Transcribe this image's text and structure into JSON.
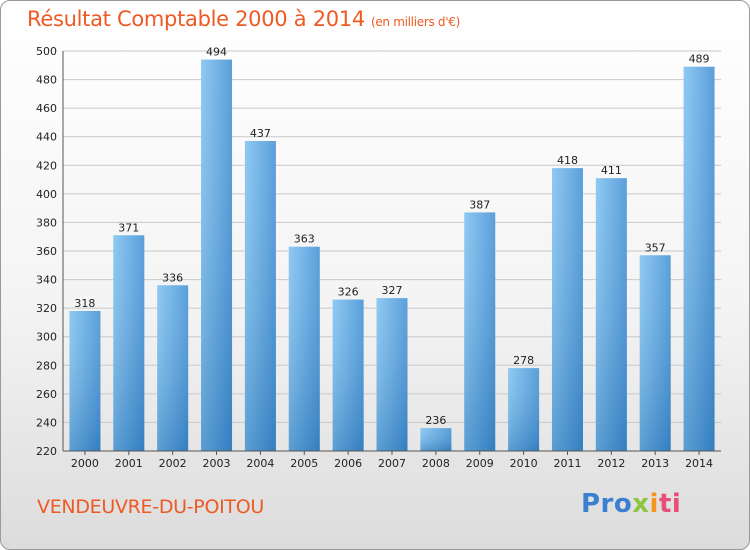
{
  "title": "Résultat Comptable 2000 à 2014",
  "subtitle": "(en milliers d'€)",
  "commune": "VENDEUVRE-DU-POITOU",
  "logo": {
    "p1": "Pro",
    "p2": "x",
    "p3": "i",
    "p4": "ti"
  },
  "colors": {
    "bar_light": "#6cb6ec",
    "bar_dark": "#2f7fc4",
    "title": "#ee5a24"
  },
  "chart_data": {
    "type": "bar",
    "title": "Résultat Comptable 2000 à 2014",
    "subtitle": "(en milliers d'€)",
    "xlabel": "",
    "ylabel": "",
    "ylim": [
      220,
      500
    ],
    "yticks": [
      220,
      240,
      260,
      280,
      300,
      320,
      340,
      360,
      380,
      400,
      420,
      440,
      460,
      480,
      500
    ],
    "grid": true,
    "categories": [
      "2000",
      "2001",
      "2002",
      "2003",
      "2004",
      "2005",
      "2006",
      "2007",
      "2008",
      "2009",
      "2010",
      "2011",
      "2012",
      "2013",
      "2014"
    ],
    "values": [
      318,
      371,
      336,
      494,
      437,
      363,
      326,
      327,
      236,
      387,
      278,
      418,
      411,
      357,
      489
    ]
  }
}
